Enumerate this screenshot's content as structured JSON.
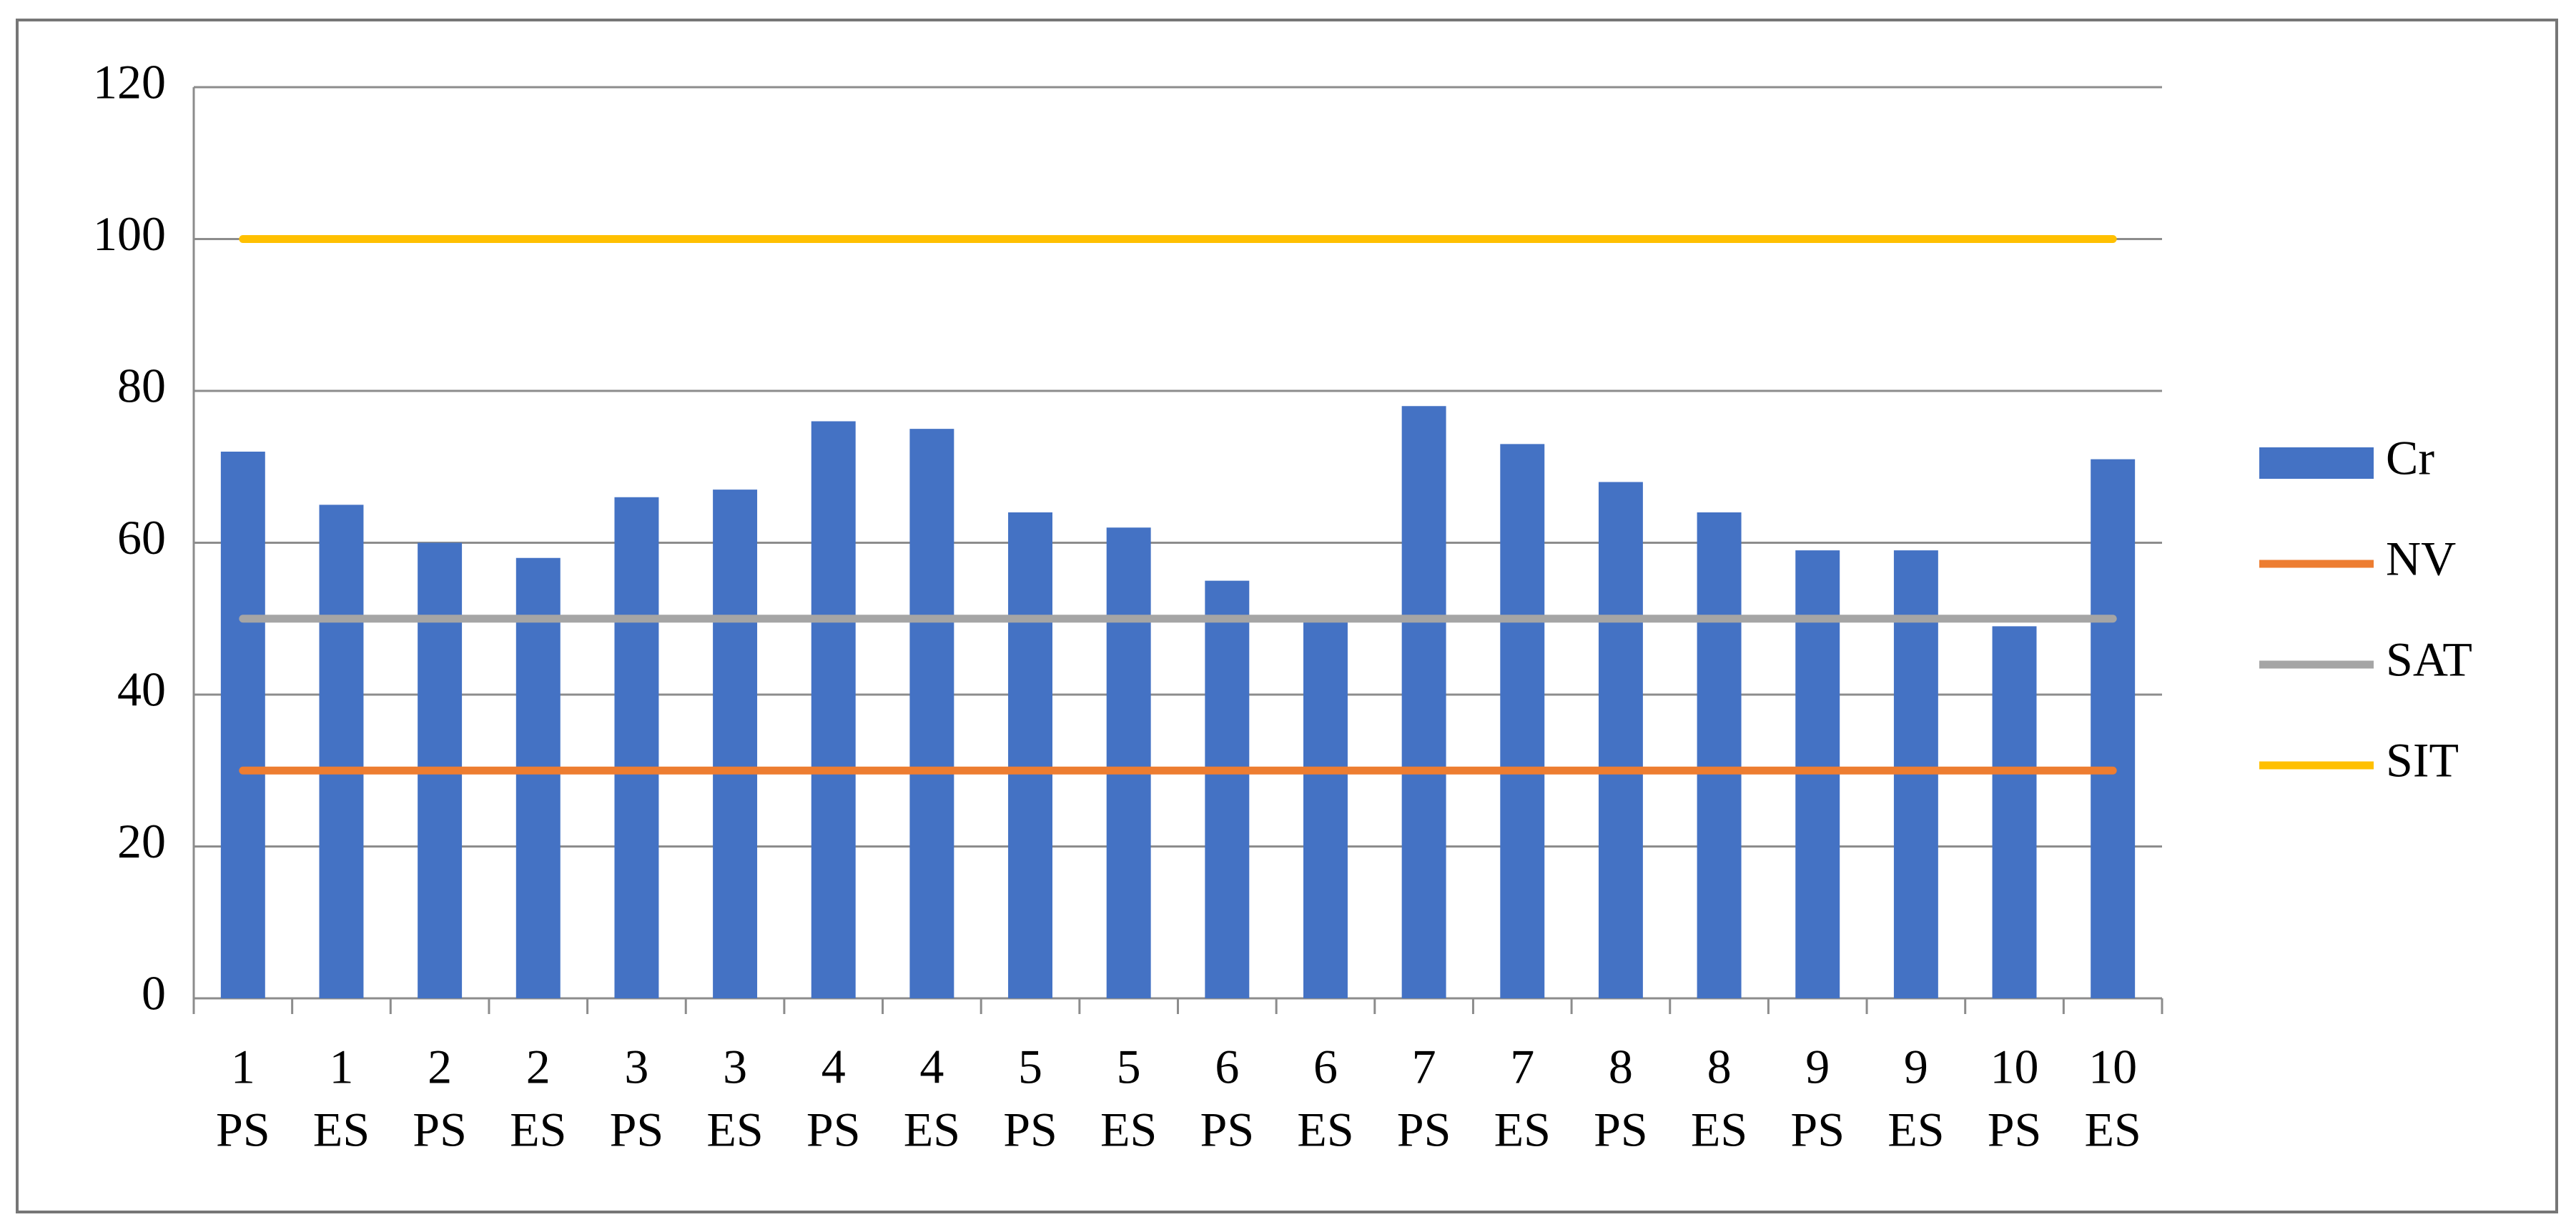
{
  "chart_data": {
    "type": "bar",
    "categories": [
      [
        "1",
        "PS"
      ],
      [
        "1",
        "ES"
      ],
      [
        "2",
        "PS"
      ],
      [
        "2",
        "ES"
      ],
      [
        "3",
        "PS"
      ],
      [
        "3",
        "ES"
      ],
      [
        "4",
        "PS"
      ],
      [
        "4",
        "ES"
      ],
      [
        "5",
        "PS"
      ],
      [
        "5",
        "ES"
      ],
      [
        "6",
        "PS"
      ],
      [
        "6",
        "ES"
      ],
      [
        "7",
        "PS"
      ],
      [
        "7",
        "ES"
      ],
      [
        "8",
        "PS"
      ],
      [
        "8",
        "ES"
      ],
      [
        "9",
        "PS"
      ],
      [
        "9",
        "ES"
      ],
      [
        "10",
        "PS"
      ],
      [
        "10",
        "ES"
      ]
    ],
    "series": [
      {
        "name": "Cr",
        "type": "bar",
        "color": "#4472c4",
        "values": [
          72,
          65,
          60,
          58,
          66,
          67,
          76,
          75,
          64,
          62,
          55,
          50,
          78,
          73,
          68,
          64,
          59,
          59,
          49,
          71
        ]
      },
      {
        "name": "NV",
        "type": "line",
        "color": "#ed7d31",
        "values": [
          30,
          30,
          30,
          30,
          30,
          30,
          30,
          30,
          30,
          30,
          30,
          30,
          30,
          30,
          30,
          30,
          30,
          30,
          30,
          30
        ]
      },
      {
        "name": "SAT",
        "type": "line",
        "color": "#a5a5a5",
        "values": [
          50,
          50,
          50,
          50,
          50,
          50,
          50,
          50,
          50,
          50,
          50,
          50,
          50,
          50,
          50,
          50,
          50,
          50,
          50,
          50
        ]
      },
      {
        "name": "SIT",
        "type": "line",
        "color": "#ffc000",
        "values": [
          100,
          100,
          100,
          100,
          100,
          100,
          100,
          100,
          100,
          100,
          100,
          100,
          100,
          100,
          100,
          100,
          100,
          100,
          100,
          100
        ]
      }
    ],
    "ylim": [
      0,
      120
    ],
    "yticks": [
      0,
      20,
      40,
      60,
      80,
      100,
      120
    ],
    "grid": true,
    "legend": "right"
  }
}
